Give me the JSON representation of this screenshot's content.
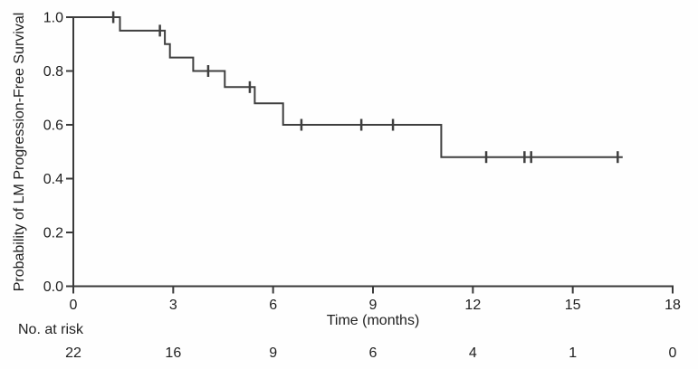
{
  "chart_data": {
    "type": "line",
    "subtype": "kaplan-meier-step-curve",
    "title": "",
    "xlabel": "Time (months)",
    "ylabel": "Probability of LM Progression-Free Survival",
    "xlim": [
      0,
      18
    ],
    "ylim": [
      0.0,
      1.0
    ],
    "grid": false,
    "legend": false,
    "axis_color": "#3a3a3a",
    "line_color": "#3f3f3f",
    "text_color": "#1f1f1f",
    "x_ticks": [
      0,
      3,
      6,
      9,
      12,
      15,
      18
    ],
    "y_ticks": [
      {
        "value": 0.0,
        "label": "0.0"
      },
      {
        "value": 0.2,
        "label": "0.2"
      },
      {
        "value": 0.4,
        "label": "0.4"
      },
      {
        "value": 0.6,
        "label": "0.6"
      },
      {
        "value": 0.8,
        "label": "0.8"
      },
      {
        "value": 1.0,
        "label": "1.0"
      }
    ],
    "series": [
      {
        "name": "LM Progression-Free Survival",
        "step_points": [
          [
            0,
            1.0
          ],
          [
            1.4,
            1.0
          ],
          [
            1.4,
            0.95
          ],
          [
            2.75,
            0.95
          ],
          [
            2.75,
            0.9
          ],
          [
            2.9,
            0.9
          ],
          [
            2.9,
            0.85
          ],
          [
            3.6,
            0.85
          ],
          [
            3.6,
            0.8
          ],
          [
            4.55,
            0.8
          ],
          [
            4.55,
            0.74
          ],
          [
            5.45,
            0.74
          ],
          [
            5.45,
            0.68
          ],
          [
            6.3,
            0.68
          ],
          [
            6.3,
            0.6
          ],
          [
            11.05,
            0.6
          ],
          [
            11.05,
            0.48
          ],
          [
            16.5,
            0.48
          ]
        ],
        "censor_marks": [
          [
            1.2,
            1.0
          ],
          [
            2.6,
            0.95
          ],
          [
            4.05,
            0.8
          ],
          [
            5.3,
            0.74
          ],
          [
            6.85,
            0.6
          ],
          [
            8.65,
            0.6
          ],
          [
            9.6,
            0.6
          ],
          [
            12.4,
            0.48
          ],
          [
            13.55,
            0.48
          ],
          [
            13.75,
            0.48
          ],
          [
            16.35,
            0.48
          ]
        ]
      }
    ],
    "risk_table": {
      "label": "No. at risk",
      "times": [
        0,
        3,
        6,
        9,
        12,
        15,
        18
      ],
      "counts": [
        22,
        16,
        9,
        6,
        4,
        1,
        0
      ]
    }
  }
}
